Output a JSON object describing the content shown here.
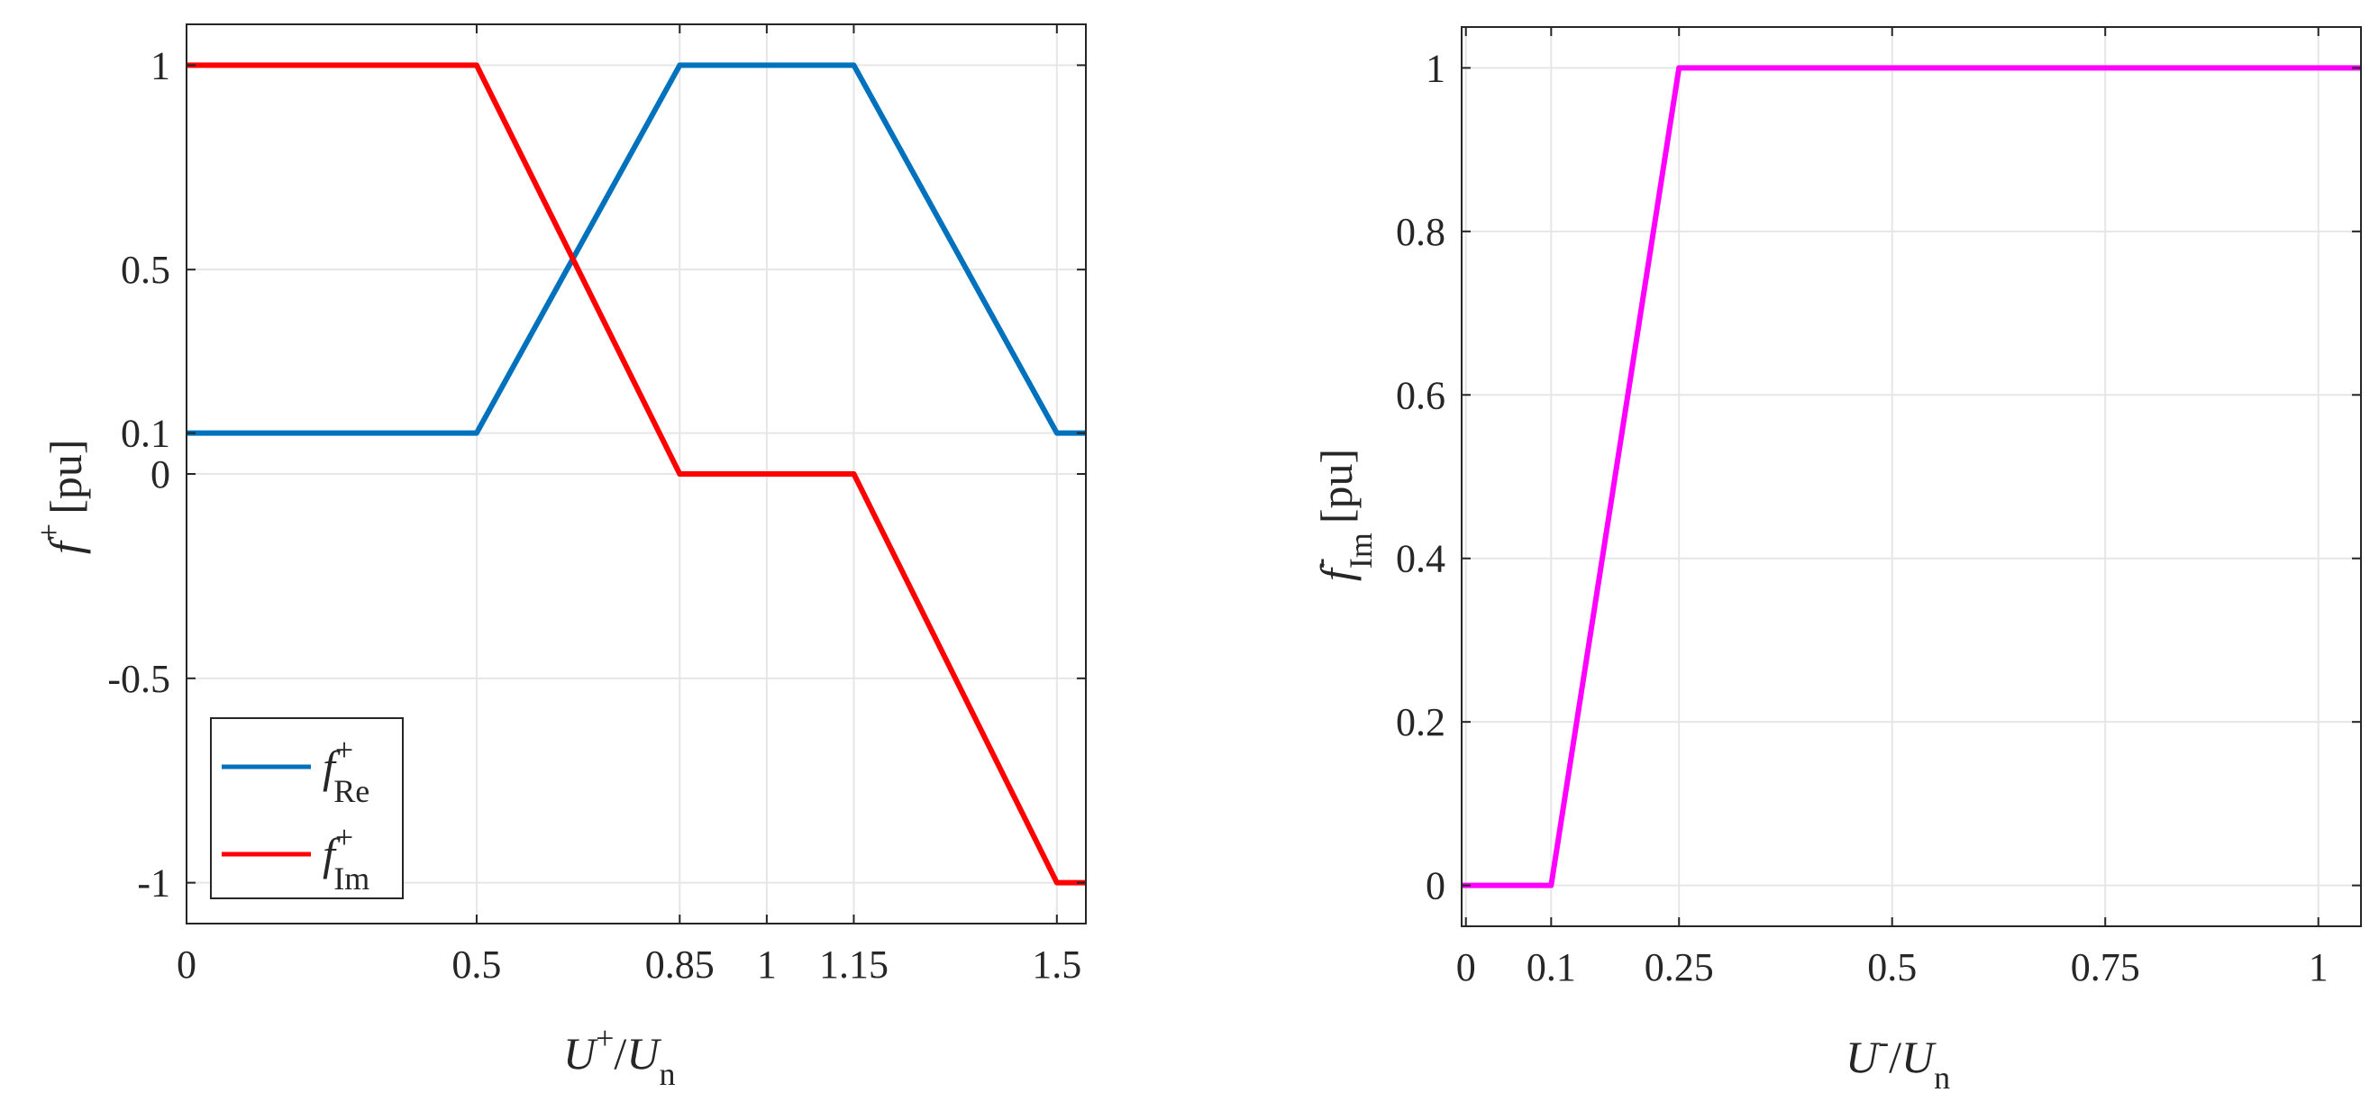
{
  "chart_data": [
    {
      "type": "line",
      "xlabel": "U+/Un",
      "ylabel": "f+ [pu]",
      "xlim": [
        0,
        1.55
      ],
      "ylim": [
        -1.1,
        1.1
      ],
      "grid": true,
      "xticks": [
        0,
        0.5,
        0.85,
        1,
        1.15,
        1.5
      ],
      "xtick_labels": [
        "0",
        "0.5",
        "0.85",
        "1",
        "1.15",
        "1.5"
      ],
      "yticks": [
        -1,
        -0.5,
        0,
        0.1,
        0.5,
        1
      ],
      "ytick_labels": [
        "-1",
        "-0.5",
        "0",
        "0.1",
        "0.5",
        "1"
      ],
      "legend": "bottom-left",
      "series": [
        {
          "name": "f+Re",
          "color": "#0072BD",
          "x": [
            0,
            0.5,
            0.85,
            1.15,
            1.5,
            1.55
          ],
          "y": [
            0.1,
            0.1,
            1,
            1,
            0.1,
            0.1
          ]
        },
        {
          "name": "f+Im",
          "color": "#FF0000",
          "x": [
            0,
            0.5,
            0.85,
            1.15,
            1.5,
            1.55
          ],
          "y": [
            1,
            1,
            0,
            0,
            -1,
            -1
          ]
        }
      ],
      "label_parts": {
        "x_main": "U",
        "x_sup": "+",
        "x_div": "/",
        "x_den": "U",
        "x_den_sub": "n",
        "y_main": "f",
        "y_sup": "+",
        "y_unit": "[pu]",
        "leg1_main": "f",
        "leg1_sup": "+",
        "leg1_sub": "Re",
        "leg2_main": "f",
        "leg2_sup": "+",
        "leg2_sub": "Im"
      }
    },
    {
      "type": "line",
      "xlabel": "U-/Un",
      "ylabel": "f-Im [pu]",
      "xlim": [
        -0.005,
        1.05
      ],
      "ylim": [
        -0.05,
        1.05
      ],
      "grid": true,
      "xticks": [
        0,
        0.1,
        0.25,
        0.5,
        0.75,
        1
      ],
      "xtick_labels": [
        "0",
        "0.1",
        "0.25",
        "0.5",
        "0.75",
        "1"
      ],
      "yticks": [
        0,
        0.2,
        0.4,
        0.6,
        0.8,
        1
      ],
      "ytick_labels": [
        "0",
        "0.2",
        "0.4",
        "0.6",
        "0.8",
        "1"
      ],
      "series": [
        {
          "name": "f-Im",
          "color": "#FF00FF",
          "x": [
            -0.005,
            0.1,
            0.25,
            1.05
          ],
          "y": [
            0,
            0,
            1,
            1
          ]
        }
      ],
      "label_parts": {
        "x_main": "U",
        "x_sup": "-",
        "x_div": "/",
        "x_den": "U",
        "x_den_sub": "n",
        "y_main": "f",
        "y_sup": "-",
        "y_sub": "Im",
        "y_unit": "[pu]"
      }
    }
  ]
}
